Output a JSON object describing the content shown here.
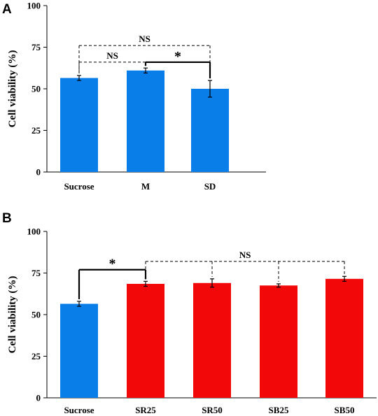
{
  "chart_data": [
    {
      "panel": "A",
      "type": "bar",
      "ylabel": "Cell viability (%)",
      "ylim": [
        0,
        100
      ],
      "yticks": [
        "0",
        "25",
        "50",
        "75",
        "100"
      ],
      "categories": [
        "Sucrose",
        "M",
        "SD"
      ],
      "values": [
        56.5,
        61,
        50
      ],
      "errors": [
        1.5,
        1.5,
        5
      ],
      "bar_colors": [
        "#0a7ee8",
        "#0a7ee8",
        "#0a7ee8"
      ],
      "annotations": [
        {
          "label": "NS",
          "from": 0,
          "to": 2,
          "level": 76,
          "style": "dashed"
        },
        {
          "label": "NS",
          "from": 0,
          "to": 1,
          "level": 66,
          "style": "dashed"
        },
        {
          "label": "*",
          "from": 1,
          "to": 2,
          "level": 66,
          "style": "solid"
        }
      ]
    },
    {
      "panel": "B",
      "type": "bar",
      "ylabel": "Cell viability (%)",
      "ylim": [
        0,
        100
      ],
      "yticks": [
        "0",
        "25",
        "50",
        "75",
        "100"
      ],
      "categories": [
        "Sucrose",
        "SR25",
        "SR50",
        "SB25",
        "SB50"
      ],
      "values": [
        56.5,
        68.5,
        69,
        67.5,
        71.5
      ],
      "errors": [
        1.5,
        1.5,
        2.5,
        1,
        1.5
      ],
      "bar_colors": [
        "#0a7ee8",
        "#f20808",
        "#f20808",
        "#f20808",
        "#f20808"
      ],
      "annotations": [
        {
          "label": "*",
          "from": 0,
          "to": 1,
          "level": 77,
          "style": "solid"
        },
        {
          "label": "NS",
          "from": 1,
          "to": 4,
          "level": 82,
          "style": "dashed",
          "drops": [
            1,
            2,
            3,
            4
          ]
        }
      ]
    }
  ]
}
